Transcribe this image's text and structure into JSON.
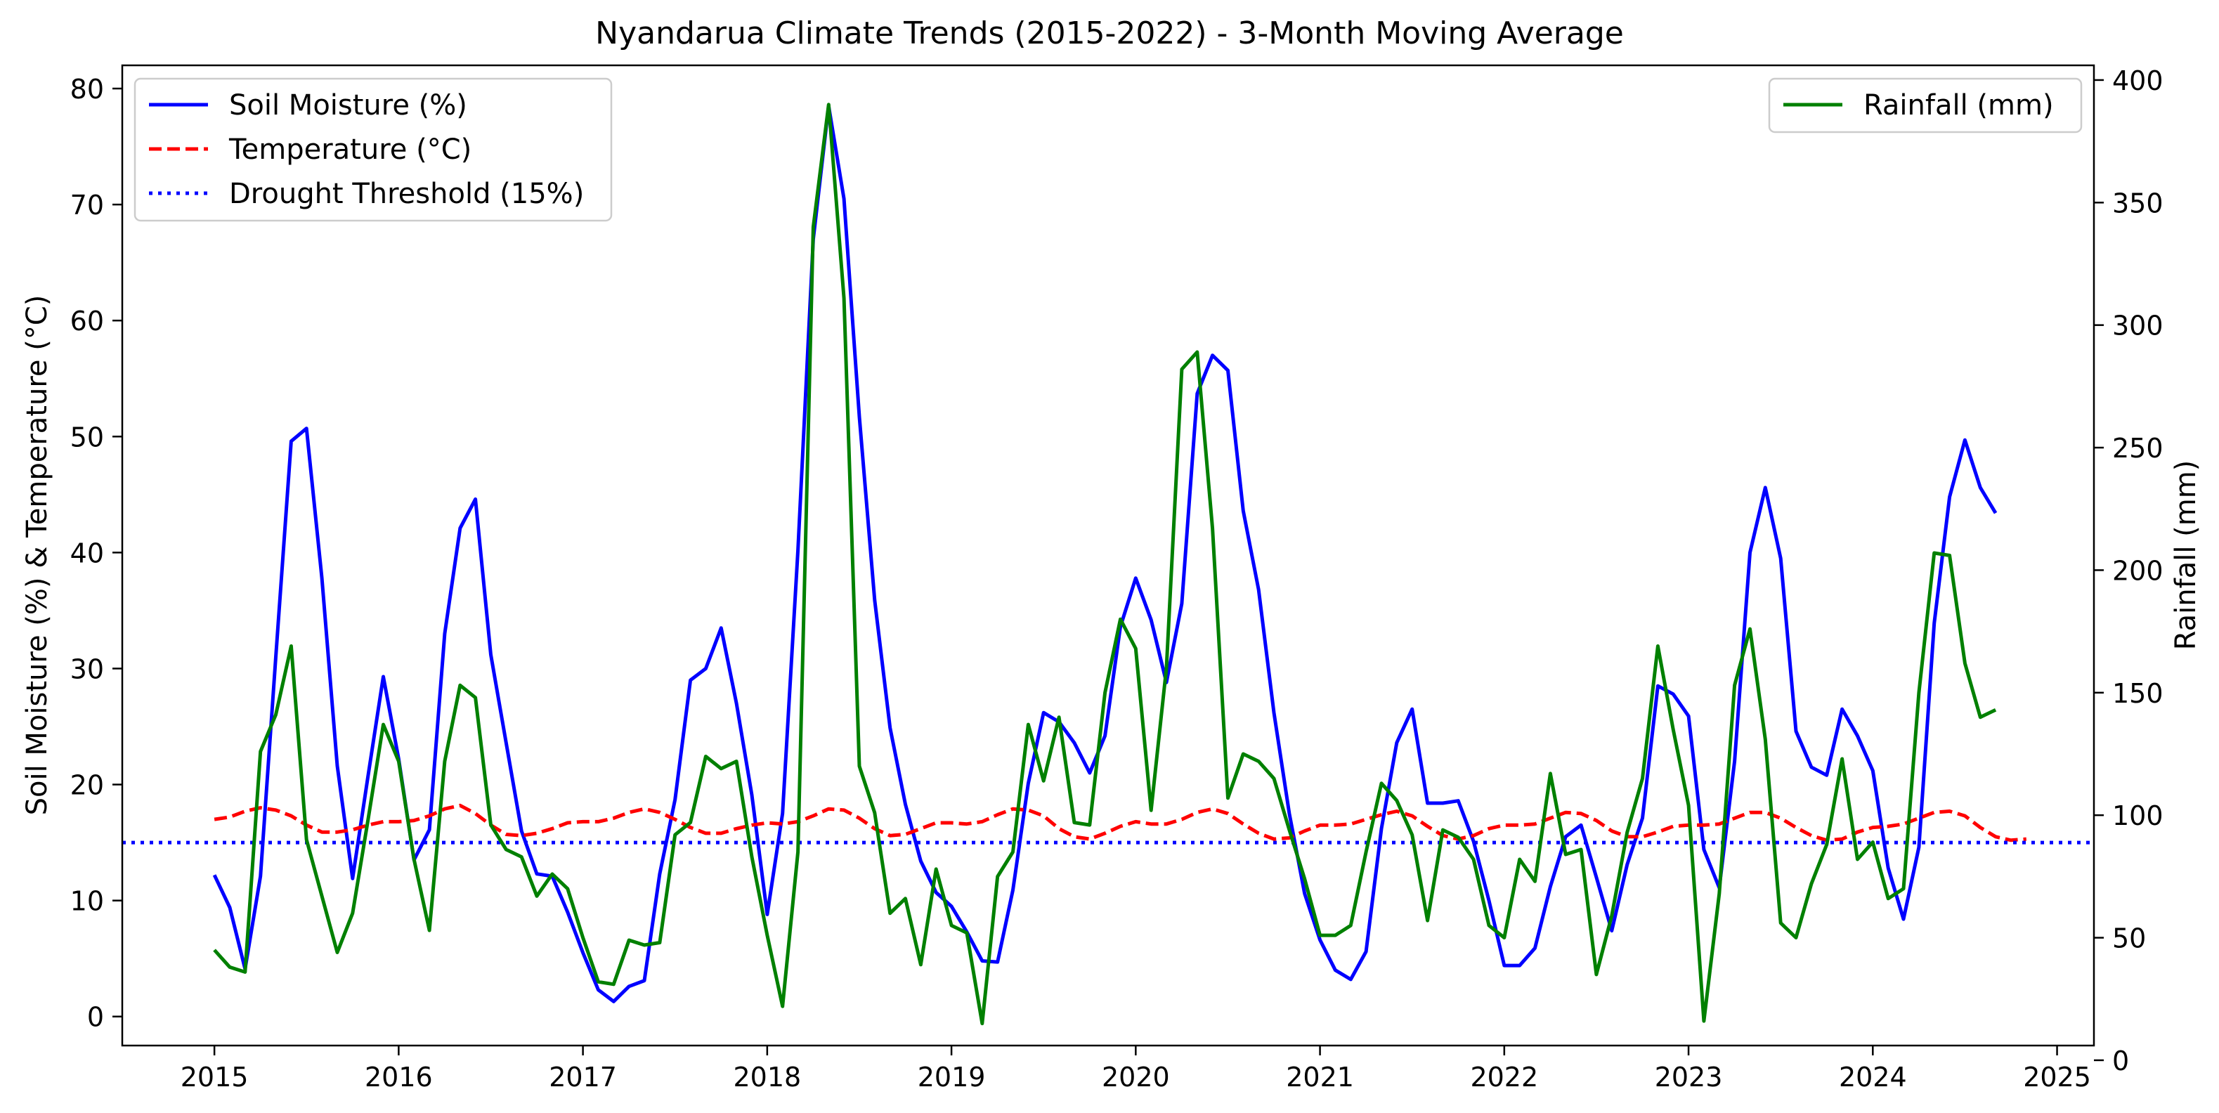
{
  "chart_data": {
    "type": "line",
    "title": "Nyandarua Climate Trends (2015-2022) - 3-Month Moving Average",
    "xlabel": "",
    "ylabel_left": "Soil Moisture (%) & Temperature (°C)",
    "ylabel_right": "Rainfall (mm)",
    "x_ticks": [
      "2015",
      "2016",
      "2017",
      "2018",
      "2019",
      "2020",
      "2021",
      "2022",
      "2023",
      "2024",
      "2025"
    ],
    "xlim": [
      2014.5,
      2025.2
    ],
    "ylim_left": [
      -2.5,
      82
    ],
    "ylim_right": [
      6,
      406
    ],
    "y_ticks_left": [
      0,
      10,
      20,
      30,
      40,
      50,
      60,
      70,
      80
    ],
    "y_ticks_right": [
      0,
      50,
      100,
      150,
      200,
      250,
      300,
      350,
      400
    ],
    "x_start": 2015.0,
    "x_step_years": 0.0833333,
    "legend_left_position": "upper-left",
    "legend_right_position": "upper-right",
    "grid": false,
    "series": [
      {
        "name": "Soil Moisture (%)",
        "axis": "left",
        "color": "#0000ff",
        "style": "solid",
        "values": [
          12.2,
          9.4,
          4.1,
          12.1,
          31.0,
          49.6,
          50.7,
          37.8,
          21.6,
          11.9,
          20.7,
          29.3,
          22.2,
          13.5,
          16.1,
          33.0,
          42.1,
          44.6,
          31.2,
          23.6,
          16.0,
          12.3,
          12.1,
          9.0,
          5.5,
          2.3,
          1.3,
          2.6,
          3.1,
          12.3,
          18.7,
          29.0,
          30.0,
          33.5,
          27.0,
          19.1,
          8.8,
          17.5,
          40.2,
          67.0,
          78.5,
          70.5,
          51.7,
          35.9,
          24.9,
          18.3,
          13.4,
          10.7,
          9.5,
          7.3,
          4.8,
          4.7,
          10.9,
          20.1,
          26.2,
          25.4,
          23.6,
          21.0,
          24.2,
          33.6,
          37.8,
          34.2,
          28.8,
          35.6,
          53.7,
          57.0,
          55.7,
          43.6,
          36.8,
          26.2,
          17.5,
          10.6,
          6.6,
          4.0,
          3.2,
          5.6,
          16.2,
          23.6,
          26.5,
          18.4,
          18.4,
          18.6,
          15.1,
          10.0,
          4.4,
          4.4,
          5.9,
          11.2,
          15.5,
          16.5,
          12.0,
          7.4,
          13.1,
          17.1,
          28.5,
          27.8,
          25.9,
          14.4,
          11.1,
          22.0,
          40.0,
          45.6,
          39.5,
          24.6,
          21.5,
          20.8,
          26.5,
          24.2,
          21.2,
          12.8,
          8.4,
          14.6,
          33.9,
          44.8,
          49.7,
          45.6,
          43.4
        ]
      },
      {
        "name": "Temperature (°C)",
        "axis": "left",
        "color": "#ff0000",
        "style": "dashed",
        "values": [
          17.0,
          17.2,
          17.7,
          18.0,
          17.8,
          17.3,
          16.5,
          15.9,
          15.9,
          16.1,
          16.5,
          16.8,
          16.8,
          16.9,
          17.3,
          17.9,
          18.2,
          17.5,
          16.5,
          15.7,
          15.6,
          15.8,
          16.2,
          16.7,
          16.8,
          16.8,
          17.1,
          17.6,
          17.9,
          17.6,
          17.0,
          16.3,
          15.8,
          15.8,
          16.2,
          16.5,
          16.7,
          16.6,
          16.8,
          17.3,
          17.9,
          17.8,
          17.1,
          16.2,
          15.6,
          15.7,
          16.2,
          16.7,
          16.7,
          16.6,
          16.8,
          17.4,
          17.9,
          17.8,
          17.3,
          16.2,
          15.5,
          15.3,
          15.8,
          16.4,
          16.8,
          16.6,
          16.6,
          17.0,
          17.6,
          17.9,
          17.5,
          16.6,
          15.8,
          15.3,
          15.4,
          16.0,
          16.5,
          16.5,
          16.6,
          17.0,
          17.4,
          17.7,
          17.3,
          16.4,
          15.6,
          15.3,
          15.6,
          16.2,
          16.5,
          16.5,
          16.6,
          17.1,
          17.6,
          17.5,
          16.9,
          16.0,
          15.5,
          15.5,
          15.9,
          16.4,
          16.5,
          16.5,
          16.6,
          17.1,
          17.6,
          17.6,
          17.1,
          16.3,
          15.6,
          15.2,
          15.3,
          15.9,
          16.3,
          16.4,
          16.6,
          17.1,
          17.6,
          17.7,
          17.3,
          16.3,
          15.5,
          15.2,
          15.3
        ]
      },
      {
        "name": "Drought Threshold (15%)",
        "axis": "left",
        "color": "#0000ff",
        "style": "dotted",
        "y": 15
      },
      {
        "name": "Rainfall (mm)",
        "axis": "right",
        "color": "#008000",
        "style": "solid",
        "values": [
          45.0,
          38.0,
          36.0,
          126.0,
          141.0,
          169.0,
          90.0,
          67.0,
          44.0,
          60.0,
          98.0,
          137.0,
          122.0,
          82.0,
          53.0,
          122.0,
          153.0,
          148.0,
          96.0,
          86.0,
          83.0,
          67.0,
          76.0,
          70.0,
          50.0,
          32.0,
          31.0,
          49.0,
          47.0,
          48.0,
          92.0,
          97.0,
          124.0,
          119.0,
          122.0,
          83.0,
          51.0,
          22.0,
          85.0,
          340.0,
          390.0,
          311.0,
          120.0,
          101.0,
          60.0,
          66.0,
          39.0,
          78.0,
          55.0,
          52.0,
          15.0,
          75.0,
          85.0,
          137.0,
          114.0,
          140.0,
          97.0,
          96.0,
          150.0,
          180.0,
          168.0,
          102.0,
          160.0,
          282.0,
          289.0,
          217.0,
          107.0,
          125.0,
          122.0,
          115.0,
          94.0,
          74.0,
          51.0,
          51.0,
          55.0,
          85.0,
          113.0,
          106.0,
          92.0,
          57.0,
          94.0,
          91.0,
          82.0,
          55.0,
          50.0,
          82.0,
          73.0,
          117.0,
          84.0,
          86.0,
          35.0,
          59.0,
          93.0,
          115.0,
          169.0,
          135.0,
          104.0,
          16.0,
          68.0,
          153.0,
          176.0,
          131.0,
          56.0,
          50.0,
          72.0,
          88.0,
          123.0,
          82.0,
          89.0,
          66.0,
          70.0,
          150.0,
          207.0,
          206.0,
          162.0,
          140.0,
          143.0
        ]
      }
    ]
  }
}
